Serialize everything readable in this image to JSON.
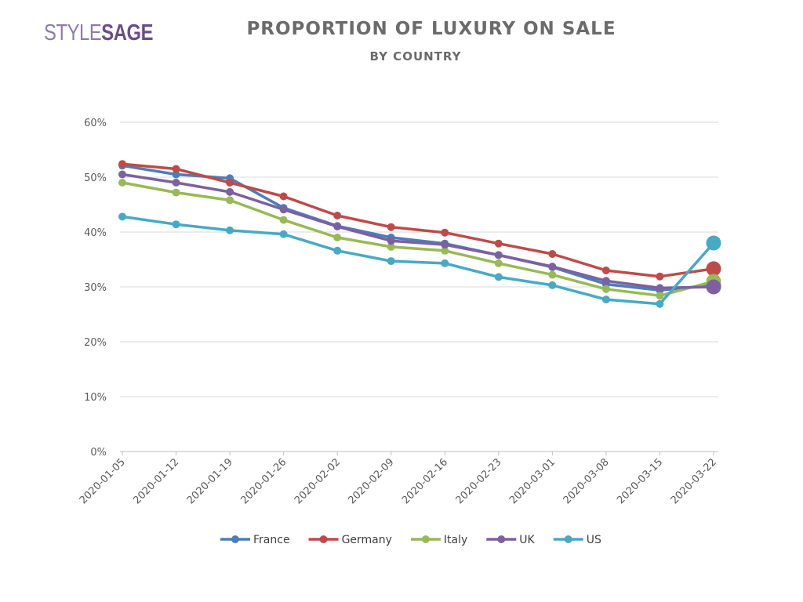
{
  "logo": {
    "part1": "STYLE",
    "part2": "SAGE"
  },
  "chart_data": {
    "type": "line",
    "title": "PROPORTION OF LUXURY ON SALE",
    "subtitle": "BY COUNTRY",
    "x": [
      "2020-01-05",
      "2020-01-12",
      "2020-01-19",
      "2020-01-26",
      "2020-02-02",
      "2020-02-09",
      "2020-02-16",
      "2020-02-23",
      "2020-03-01",
      "2020-03-08",
      "2020-03-15",
      "2020-03-22"
    ],
    "y_ticks": [
      "0%",
      "10%",
      "20%",
      "30%",
      "40%",
      "50%",
      "60%"
    ],
    "ylim": [
      0,
      60
    ],
    "grid": true,
    "legend_position": "bottom",
    "series": [
      {
        "name": "France",
        "color": "#4a7ebb",
        "values": [
          52.1,
          50.5,
          49.8,
          44.4,
          41.1,
          39.0,
          37.9,
          35.8,
          33.6,
          30.5,
          29.4,
          30.3
        ]
      },
      {
        "name": "Germany",
        "color": "#be4b48",
        "values": [
          52.4,
          51.5,
          49.0,
          46.5,
          43.0,
          40.9,
          39.9,
          37.9,
          36.0,
          33.0,
          31.9,
          33.3
        ]
      },
      {
        "name": "Italy",
        "color": "#98b954",
        "values": [
          49.0,
          47.2,
          45.8,
          42.2,
          39.0,
          37.3,
          36.6,
          34.3,
          32.2,
          29.6,
          28.4,
          31.0
        ]
      },
      {
        "name": "UK",
        "color": "#7d60a0",
        "values": [
          50.5,
          49.0,
          47.3,
          44.1,
          41.0,
          38.4,
          37.7,
          35.8,
          33.7,
          31.1,
          29.8,
          30.0
        ]
      },
      {
        "name": "US",
        "color": "#46aac5",
        "values": [
          42.8,
          41.4,
          40.3,
          39.6,
          36.6,
          34.7,
          34.3,
          31.8,
          30.3,
          27.7,
          26.9,
          38.0
        ]
      }
    ]
  }
}
